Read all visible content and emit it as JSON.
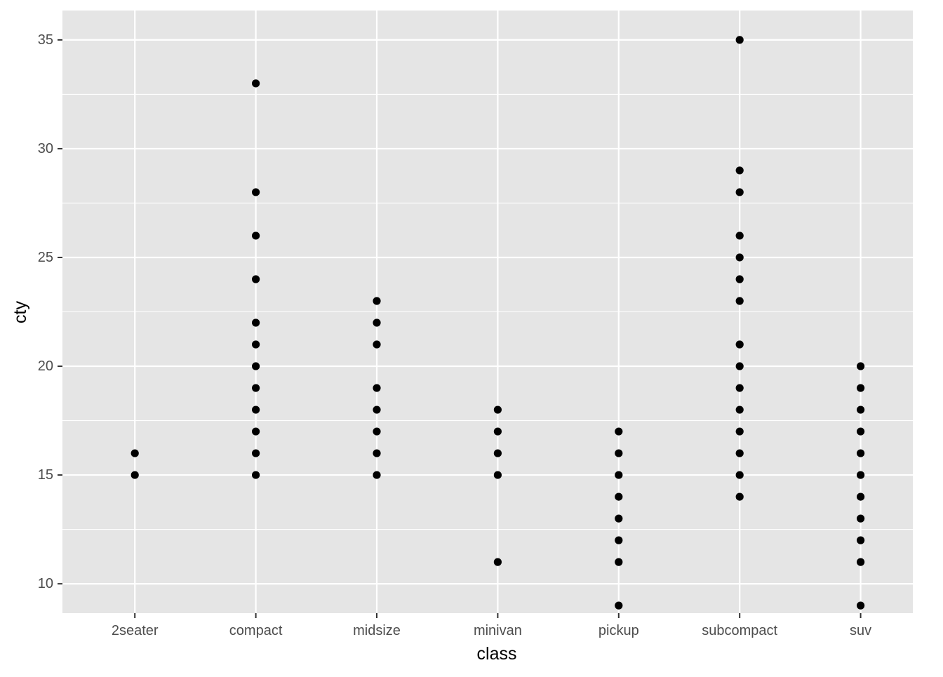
{
  "chart_data": {
    "type": "scatter",
    "title": "",
    "xlabel": "class",
    "ylabel": "cty",
    "categories": [
      "2seater",
      "compact",
      "midsize",
      "minivan",
      "pickup",
      "subcompact",
      "suv"
    ],
    "ylim": [
      8.65,
      36.35
    ],
    "y_ticks": [
      10,
      15,
      20,
      25,
      30,
      35
    ],
    "y_tick_labels": [
      "10",
      "15",
      "20",
      "25",
      "30",
      "35"
    ],
    "grid": true,
    "legend": "none",
    "series": [
      {
        "points": [
          {
            "x": "2seater",
            "y": 15
          },
          {
            "x": "2seater",
            "y": 16
          },
          {
            "x": "compact",
            "y": 15
          },
          {
            "x": "compact",
            "y": 16
          },
          {
            "x": "compact",
            "y": 17
          },
          {
            "x": "compact",
            "y": 18
          },
          {
            "x": "compact",
            "y": 19
          },
          {
            "x": "compact",
            "y": 20
          },
          {
            "x": "compact",
            "y": 21
          },
          {
            "x": "compact",
            "y": 22
          },
          {
            "x": "compact",
            "y": 24
          },
          {
            "x": "compact",
            "y": 26
          },
          {
            "x": "compact",
            "y": 28
          },
          {
            "x": "compact",
            "y": 33
          },
          {
            "x": "midsize",
            "y": 15
          },
          {
            "x": "midsize",
            "y": 16
          },
          {
            "x": "midsize",
            "y": 17
          },
          {
            "x": "midsize",
            "y": 18
          },
          {
            "x": "midsize",
            "y": 19
          },
          {
            "x": "midsize",
            "y": 21
          },
          {
            "x": "midsize",
            "y": 22
          },
          {
            "x": "midsize",
            "y": 23
          },
          {
            "x": "minivan",
            "y": 11
          },
          {
            "x": "minivan",
            "y": 15
          },
          {
            "x": "minivan",
            "y": 16
          },
          {
            "x": "minivan",
            "y": 17
          },
          {
            "x": "minivan",
            "y": 18
          },
          {
            "x": "pickup",
            "y": 9
          },
          {
            "x": "pickup",
            "y": 11
          },
          {
            "x": "pickup",
            "y": 12
          },
          {
            "x": "pickup",
            "y": 13
          },
          {
            "x": "pickup",
            "y": 14
          },
          {
            "x": "pickup",
            "y": 15
          },
          {
            "x": "pickup",
            "y": 16
          },
          {
            "x": "pickup",
            "y": 17
          },
          {
            "x": "subcompact",
            "y": 14
          },
          {
            "x": "subcompact",
            "y": 15
          },
          {
            "x": "subcompact",
            "y": 16
          },
          {
            "x": "subcompact",
            "y": 17
          },
          {
            "x": "subcompact",
            "y": 18
          },
          {
            "x": "subcompact",
            "y": 19
          },
          {
            "x": "subcompact",
            "y": 20
          },
          {
            "x": "subcompact",
            "y": 21
          },
          {
            "x": "subcompact",
            "y": 23
          },
          {
            "x": "subcompact",
            "y": 24
          },
          {
            "x": "subcompact",
            "y": 25
          },
          {
            "x": "subcompact",
            "y": 26
          },
          {
            "x": "subcompact",
            "y": 28
          },
          {
            "x": "subcompact",
            "y": 29
          },
          {
            "x": "subcompact",
            "y": 35
          },
          {
            "x": "suv",
            "y": 9
          },
          {
            "x": "suv",
            "y": 11
          },
          {
            "x": "suv",
            "y": 12
          },
          {
            "x": "suv",
            "y": 13
          },
          {
            "x": "suv",
            "y": 14
          },
          {
            "x": "suv",
            "y": 15
          },
          {
            "x": "suv",
            "y": 16
          },
          {
            "x": "suv",
            "y": 17
          },
          {
            "x": "suv",
            "y": 18
          },
          {
            "x": "suv",
            "y": 19
          },
          {
            "x": "suv",
            "y": 20
          }
        ]
      }
    ],
    "colors": {
      "panel_background": "#e5e5e5",
      "grid_line": "#ffffff",
      "point": "#000000",
      "tick_label": "#4d4d4d",
      "tick_mark": "#333333",
      "axis_title": "#000000"
    }
  }
}
